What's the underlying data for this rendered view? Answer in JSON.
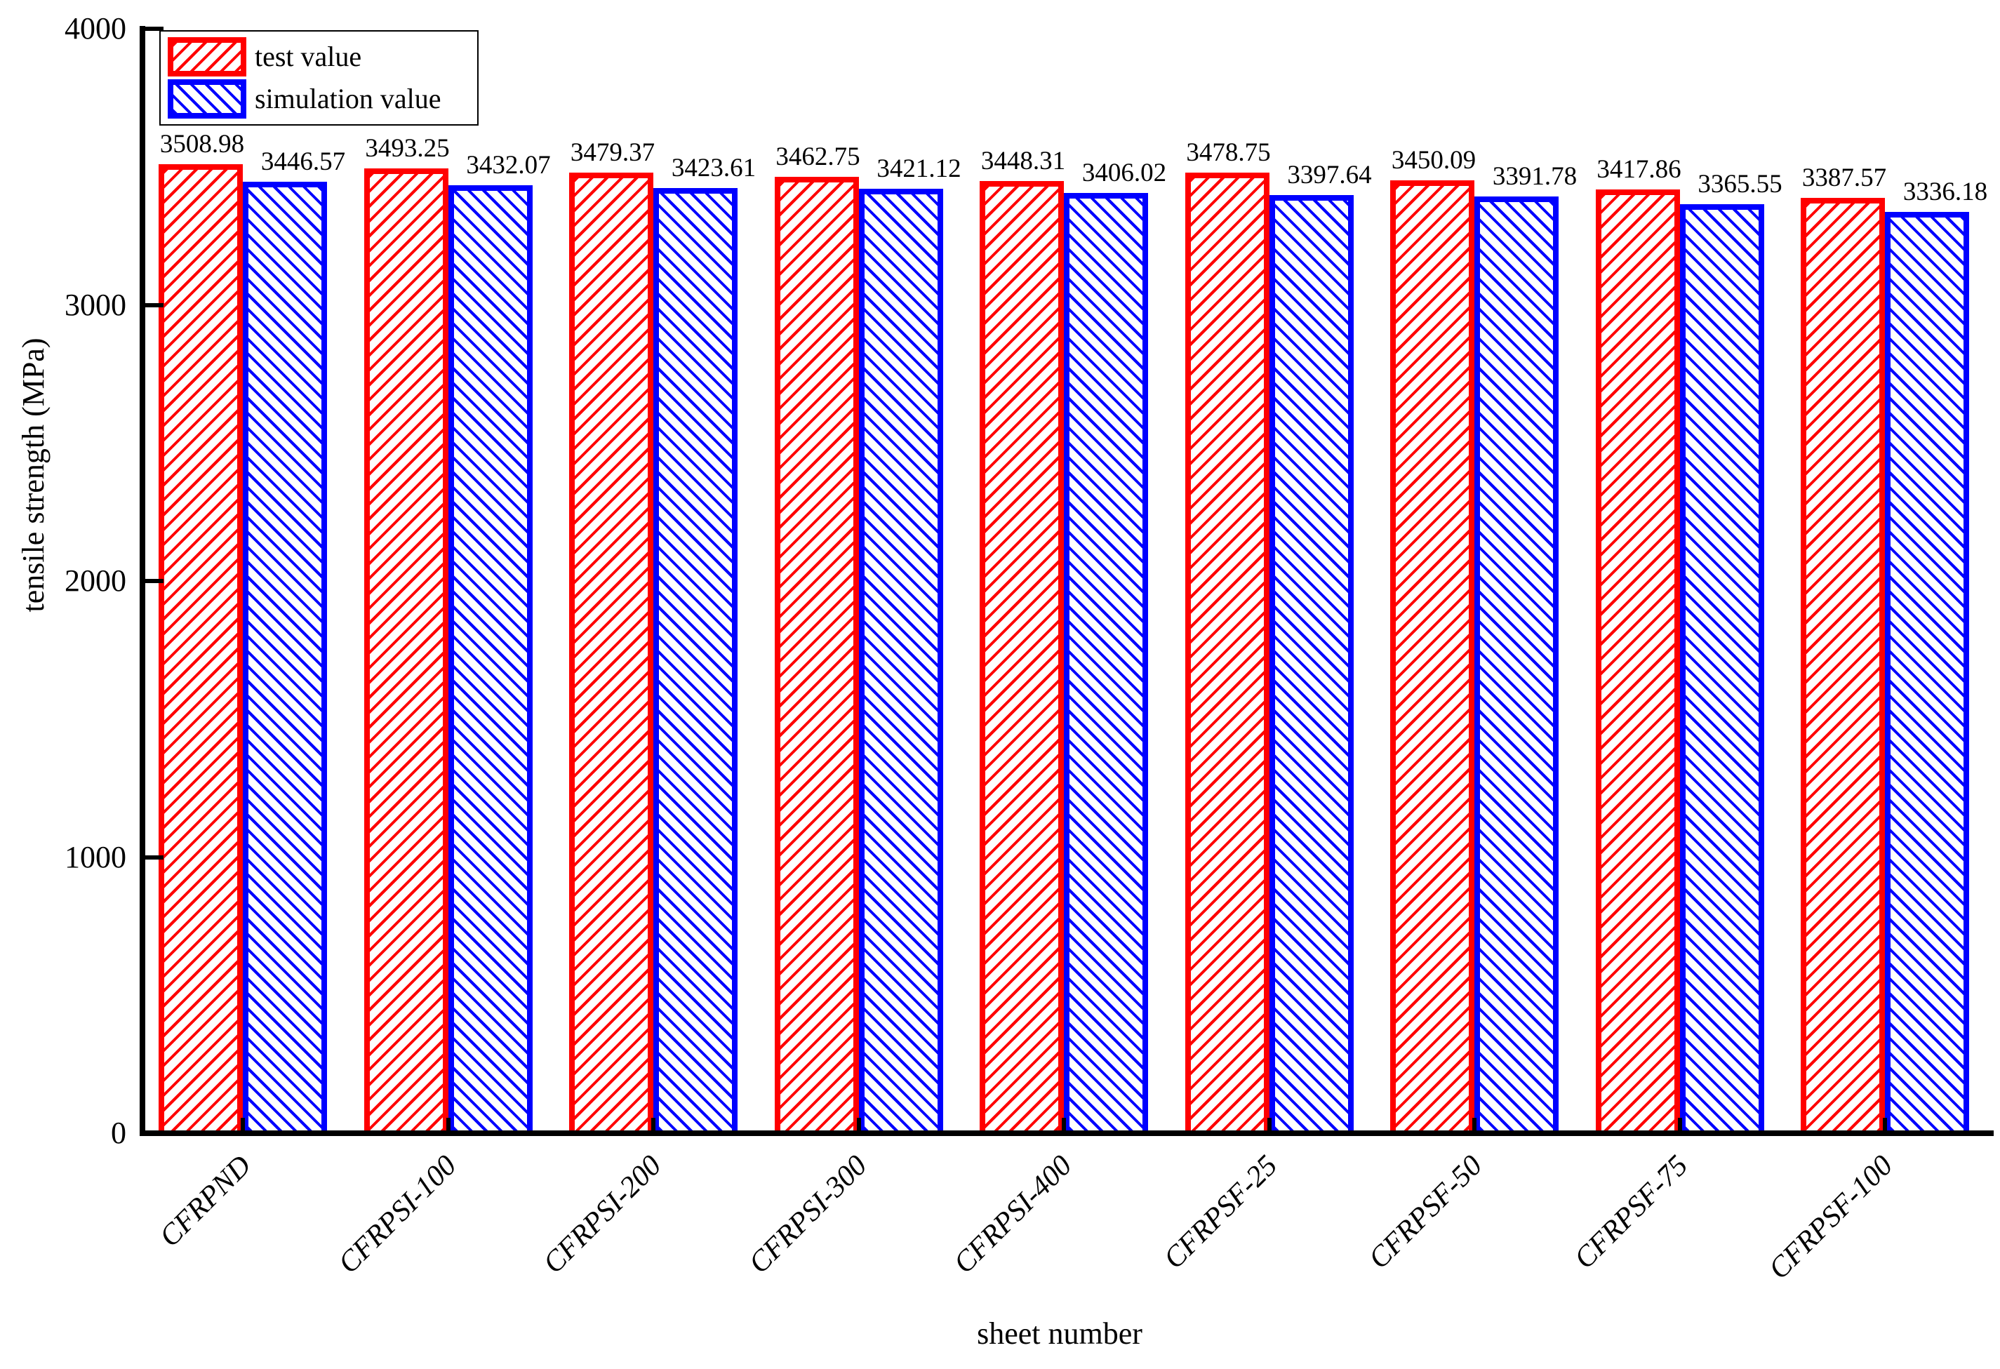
{
  "figure": {
    "background": "#FFFFFF",
    "axis_color": "#000000"
  },
  "chart_data": {
    "type": "bar",
    "title": "",
    "xlabel": "sheet number",
    "ylabel": "tensile strength (MPa)",
    "categories": [
      "CFRPND",
      "CFRPSI-100",
      "CFRPSI-200",
      "CFRPSI-300",
      "CFRPSI-400",
      "CFRPSF-25",
      "CFRPSF-50",
      "CFRPSF-75",
      "CFRPSF-100"
    ],
    "series": [
      {
        "name": "test value",
        "color": "#FF0000",
        "hatch": "/",
        "values": [
          3508.98,
          3493.25,
          3479.37,
          3462.75,
          3448.31,
          3478.75,
          3450.09,
          3417.86,
          3387.57
        ]
      },
      {
        "name": "simulation value",
        "color": "#0000FF",
        "hatch": "\\",
        "values": [
          3446.57,
          3432.07,
          3423.61,
          3421.12,
          3406.02,
          3397.64,
          3391.78,
          3365.55,
          3336.18
        ]
      }
    ],
    "ylim": [
      0,
      4000
    ],
    "yticks": [
      0,
      1000,
      2000,
      3000,
      4000
    ],
    "grid": false,
    "legend_position": "top-left",
    "value_labels": true
  }
}
